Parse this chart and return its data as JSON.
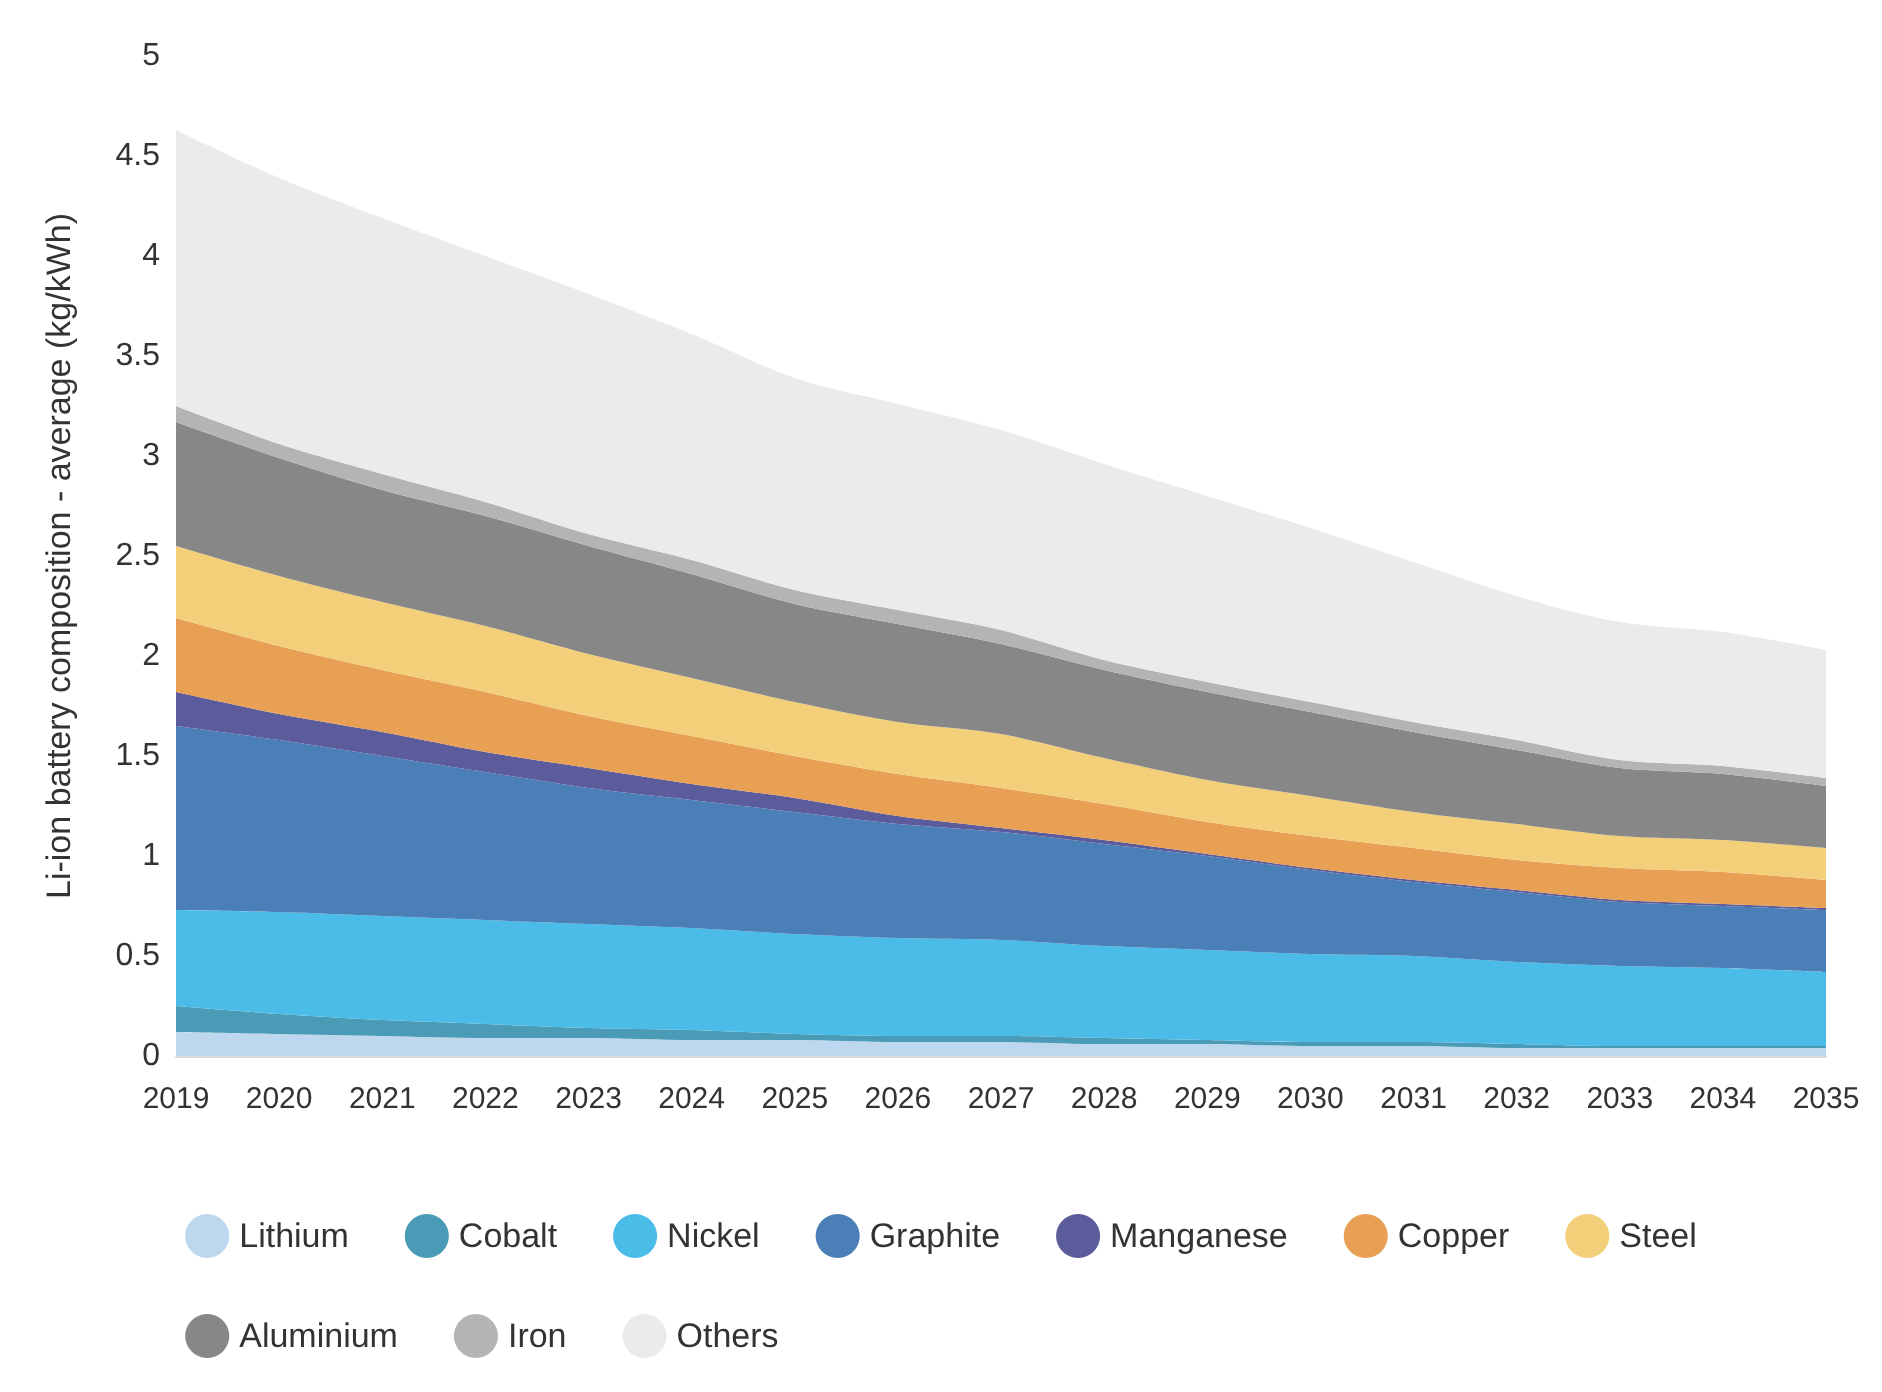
{
  "chart_data": {
    "type": "area",
    "stacked": true,
    "ylabel": "Li-ion battery composition - average (kg/kWh)",
    "categories": [
      "2019",
      "2020",
      "2021",
      "2022",
      "2023",
      "2024",
      "2025",
      "2026",
      "2027",
      "2028",
      "2029",
      "2030",
      "2031",
      "2032",
      "2033",
      "2034",
      "2035"
    ],
    "ylim": [
      0,
      5
    ],
    "yticks": [
      0,
      0.5,
      1,
      1.5,
      2,
      2.5,
      3,
      3.5,
      4,
      4.5,
      5
    ],
    "grid": false,
    "legend": "bottom",
    "series": [
      {
        "name": "Lithium",
        "color": "#bdd7ee",
        "values": [
          0.12,
          0.11,
          0.1,
          0.09,
          0.09,
          0.08,
          0.08,
          0.07,
          0.07,
          0.06,
          0.06,
          0.05,
          0.05,
          0.04,
          0.04,
          0.04,
          0.04
        ]
      },
      {
        "name": "Cobalt",
        "color": "#4a9bb5",
        "values": [
          0.13,
          0.1,
          0.08,
          0.07,
          0.05,
          0.05,
          0.03,
          0.03,
          0.03,
          0.03,
          0.02,
          0.02,
          0.02,
          0.02,
          0.01,
          0.01,
          0.01
        ]
      },
      {
        "name": "Nickel",
        "color": "#4bbbe8",
        "values": [
          0.48,
          0.51,
          0.52,
          0.52,
          0.52,
          0.51,
          0.5,
          0.49,
          0.48,
          0.46,
          0.45,
          0.44,
          0.43,
          0.41,
          0.4,
          0.39,
          0.37
        ]
      },
      {
        "name": "Graphite",
        "color": "#4a7fb8",
        "values": [
          0.92,
          0.86,
          0.8,
          0.74,
          0.68,
          0.64,
          0.61,
          0.57,
          0.54,
          0.51,
          0.47,
          0.42,
          0.37,
          0.35,
          0.32,
          0.31,
          0.31
        ]
      },
      {
        "name": "Manganese",
        "color": "#5c5c9c",
        "values": [
          0.17,
          0.13,
          0.12,
          0.1,
          0.1,
          0.08,
          0.07,
          0.04,
          0.02,
          0.02,
          0.01,
          0.01,
          0.01,
          0.01,
          0.01,
          0.01,
          0.01
        ]
      },
      {
        "name": "Copper",
        "color": "#e8a055",
        "values": [
          0.37,
          0.34,
          0.31,
          0.3,
          0.26,
          0.24,
          0.21,
          0.21,
          0.2,
          0.18,
          0.16,
          0.16,
          0.16,
          0.15,
          0.16,
          0.16,
          0.14
        ]
      },
      {
        "name": "Steel",
        "color": "#f2cf78",
        "values": [
          0.36,
          0.35,
          0.34,
          0.33,
          0.31,
          0.29,
          0.27,
          0.26,
          0.27,
          0.23,
          0.21,
          0.2,
          0.18,
          0.18,
          0.16,
          0.16,
          0.16
        ]
      },
      {
        "name": "Aluminium",
        "color": "#878787",
        "values": [
          0.62,
          0.59,
          0.56,
          0.55,
          0.54,
          0.52,
          0.49,
          0.49,
          0.45,
          0.44,
          0.44,
          0.42,
          0.4,
          0.37,
          0.34,
          0.33,
          0.31
        ]
      },
      {
        "name": "Iron",
        "color": "#b4b4b4",
        "values": [
          0.08,
          0.07,
          0.08,
          0.07,
          0.06,
          0.07,
          0.07,
          0.07,
          0.07,
          0.05,
          0.05,
          0.05,
          0.05,
          0.05,
          0.04,
          0.04,
          0.04
        ]
      },
      {
        "name": "Others",
        "color": "#ebebeb",
        "values": [
          1.38,
          1.33,
          1.28,
          1.23,
          1.2,
          1.13,
          1.06,
          1.03,
          1.0,
          0.98,
          0.93,
          0.87,
          0.8,
          0.72,
          0.69,
          0.67,
          0.64
        ]
      }
    ]
  }
}
